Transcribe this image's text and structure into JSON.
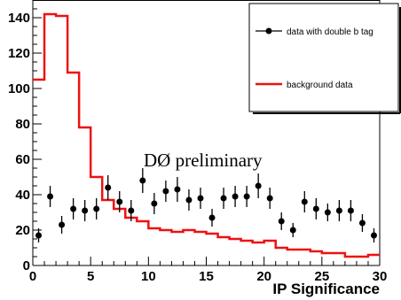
{
  "chart_data": {
    "type": "scatter",
    "xlabel": "IP Significance",
    "ylabel": "",
    "xlim": [
      0,
      30
    ],
    "ylim": [
      0,
      150
    ],
    "x_ticks": [
      0,
      5,
      10,
      15,
      20,
      25,
      30
    ],
    "y_ticks": [
      0,
      20,
      40,
      60,
      80,
      100,
      120,
      140
    ],
    "annotation": "DØ preliminary",
    "legend_position": "top-right",
    "series": [
      {
        "name": "data with double b tag",
        "style": "points-with-errors",
        "color": "#000000",
        "x": [
          0.5,
          1.5,
          2.5,
          3.5,
          4.5,
          5.5,
          6.5,
          7.5,
          8.5,
          9.5,
          10.5,
          11.5,
          12.5,
          13.5,
          14.5,
          15.5,
          16.5,
          17.5,
          18.5,
          19.5,
          20.5,
          21.5,
          22.5,
          23.5,
          24.5,
          25.5,
          26.5,
          27.5,
          28.5,
          29.5
        ],
        "y": [
          17,
          39,
          23,
          32,
          31,
          32,
          44,
          36,
          31,
          48,
          35,
          42,
          43,
          37,
          38,
          27,
          38,
          39,
          39,
          45,
          38,
          25,
          20,
          36,
          32,
          30,
          31,
          31,
          24,
          17
        ],
        "err": [
          4,
          6,
          5,
          6,
          6,
          6,
          7,
          6,
          6,
          7,
          6,
          6,
          7,
          6,
          6,
          5,
          6,
          6,
          6,
          7,
          6,
          5,
          4,
          6,
          6,
          5,
          6,
          6,
          5,
          4
        ]
      },
      {
        "name": "background data",
        "style": "step",
        "color": "#ee1111",
        "bin_edges": [
          0,
          1,
          2,
          3,
          4,
          5,
          6,
          7,
          8,
          9,
          10,
          11,
          12,
          13,
          14,
          15,
          16,
          17,
          18,
          19,
          20,
          21,
          22,
          23,
          24,
          25,
          26,
          27,
          28,
          29,
          30
        ],
        "values": [
          105,
          142,
          141,
          109,
          78,
          50,
          37,
          32,
          27,
          25,
          21,
          20,
          19,
          20,
          19,
          18,
          16,
          15,
          14,
          13,
          14,
          10,
          9,
          9,
          8,
          7,
          7,
          5,
          5,
          6
        ]
      }
    ]
  }
}
